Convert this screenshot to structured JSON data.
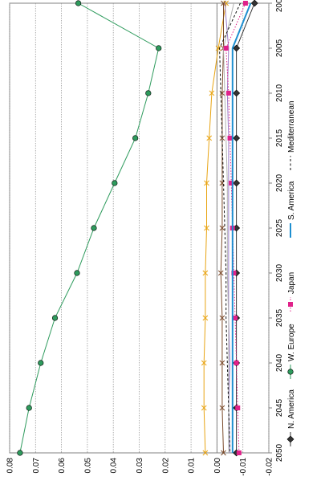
{
  "chart_data": {
    "type": "line",
    "title": "",
    "xlabel": "",
    "ylabel": "",
    "x": [
      2000,
      2005,
      2010,
      2015,
      2020,
      2025,
      2030,
      2035,
      2040,
      2045,
      2050
    ],
    "ylim": [
      -0.02,
      0.08
    ],
    "y_ticks": [
      "0.08",
      "0.07",
      "0.06",
      "0.05",
      "0.04",
      "0.03",
      "0.02",
      "0.01",
      "0.00",
      "-0.01",
      "-0.02"
    ],
    "x_ticks": [
      "2000",
      "2005",
      "2010",
      "2015",
      "2020",
      "2025",
      "2030",
      "2035",
      "2040",
      "2045",
      "2050"
    ],
    "grid": "horizontal",
    "legend_position": "bottom",
    "series": [
      {
        "name": "N. America",
        "color": "#333333",
        "marker": "diamond",
        "dash": "solid",
        "values": [
          -0.0145,
          -0.0075,
          -0.0075,
          -0.0075,
          -0.0075,
          -0.0075,
          -0.0075,
          -0.0075,
          -0.0075,
          -0.0075,
          -0.0075
        ]
      },
      {
        "name": "W. Europe",
        "color": "#2e9b5d",
        "marker": "circle",
        "dash": "solid",
        "values": [
          0.0535,
          0.0225,
          0.0265,
          0.0315,
          0.0395,
          0.0475,
          0.054,
          0.0625,
          0.068,
          0.0725,
          0.076
        ]
      },
      {
        "name": "Japan",
        "color": "#e0218a",
        "marker": "square",
        "dash": "dotted",
        "values": [
          -0.011,
          -0.0035,
          -0.0045,
          -0.005,
          -0.0055,
          -0.006,
          -0.0065,
          -0.007,
          -0.0075,
          -0.008,
          -0.0085
        ]
      },
      {
        "name": "S. America",
        "color": "#1e8fd0",
        "marker": "none",
        "dash": "solid",
        "values": [
          -0.013,
          -0.006,
          -0.006,
          -0.006,
          -0.006,
          -0.006,
          -0.006,
          -0.006,
          -0.006,
          -0.006,
          -0.006
        ]
      },
      {
        "name": "Mediterranean",
        "color": "#111111",
        "marker": "none",
        "dash": "dashed",
        "values": [
          -0.009,
          -0.001,
          -0.0015,
          -0.002,
          -0.0025,
          -0.003,
          -0.0035,
          -0.0035,
          -0.004,
          -0.0045,
          -0.005
        ]
      }
    ],
    "extra_lines": [
      {
        "color": "#e8a413",
        "marker": "cross",
        "dash": "solid",
        "values": [
          -0.0035,
          -0.0005,
          0.002,
          0.003,
          0.004,
          0.004,
          0.0045,
          0.0045,
          0.005,
          0.005,
          0.0045
        ]
      },
      {
        "color": "#7b4a2a",
        "marker": "cross",
        "dash": "solid",
        "values": [
          -0.0025,
          -0.0025,
          -0.002,
          -0.002,
          -0.002,
          -0.002,
          -0.0015,
          -0.002,
          -0.002,
          -0.002,
          -0.0025
        ]
      },
      {
        "color": "#9a7bc8",
        "marker": "none",
        "dash": "solid",
        "values": [
          -0.003,
          -0.0045,
          -0.004,
          -0.0045,
          -0.0045,
          -0.0045,
          -0.0045,
          -0.0045,
          -0.005,
          -0.0045,
          -0.005
        ]
      },
      {
        "color": "#b0b0b0",
        "marker": "none",
        "dash": "solid",
        "values": [
          -0.0065,
          -0.0025,
          -0.003,
          -0.0035,
          -0.004,
          -0.004,
          -0.004,
          -0.0045,
          -0.0045,
          -0.0045,
          -0.0045
        ]
      }
    ]
  }
}
